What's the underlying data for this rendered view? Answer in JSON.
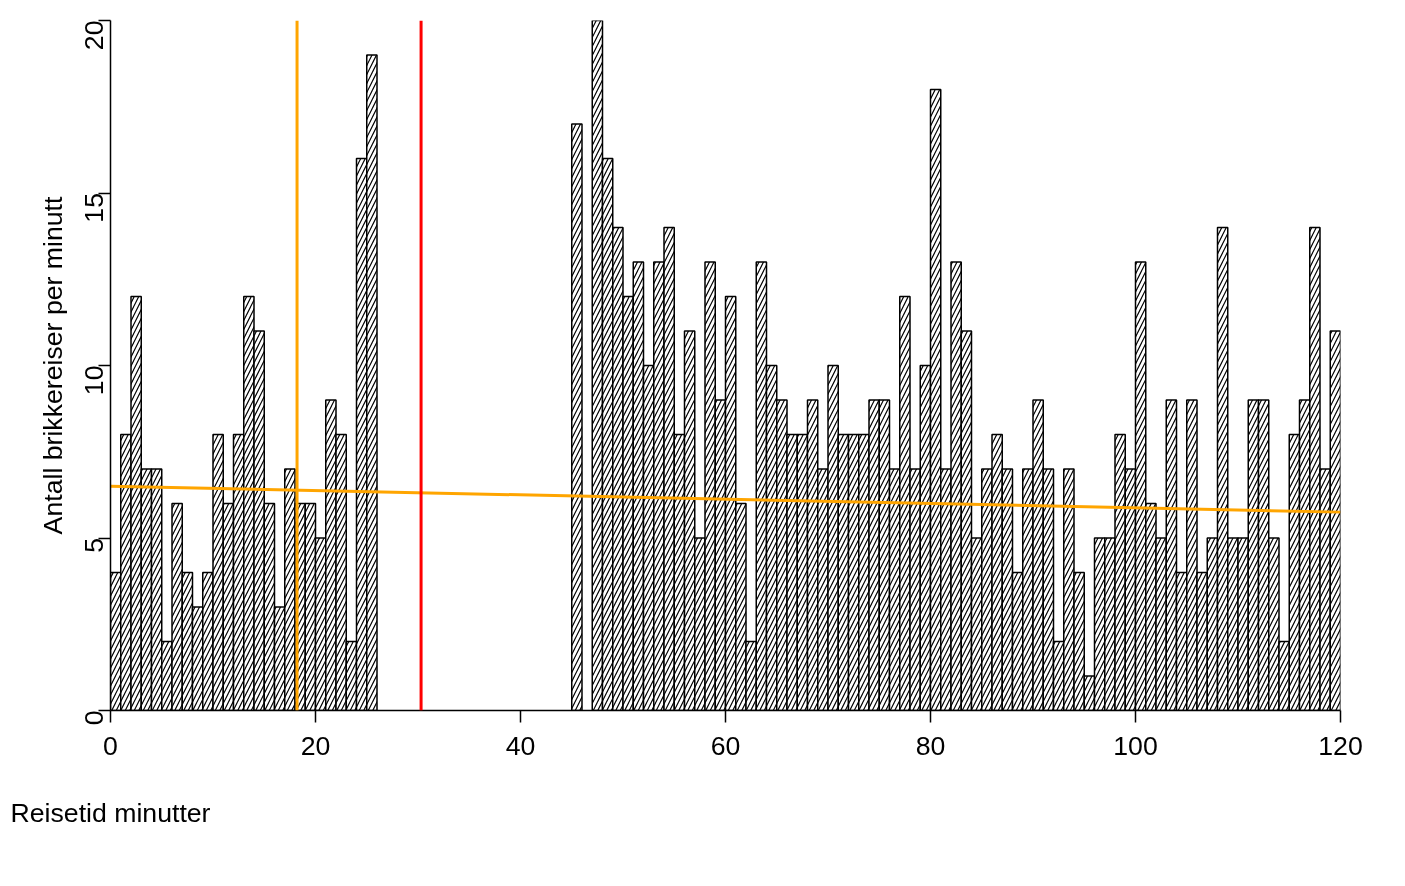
{
  "chart_data": {
    "type": "histogram",
    "xlabel": "Reisetid minutter",
    "ylabel": "Antall brikkereiser per minutt",
    "bins": [
      0,
      1,
      2,
      3,
      4,
      5,
      6,
      7,
      8,
      9,
      10,
      11,
      12,
      13,
      14,
      15,
      16,
      17,
      18,
      19,
      20,
      21,
      22,
      23,
      24,
      25,
      26,
      27,
      28,
      29,
      30,
      31,
      32,
      33,
      34,
      35,
      36,
      37,
      38,
      39,
      40,
      41,
      42,
      43,
      44,
      45,
      46,
      47,
      48,
      49,
      50,
      51,
      52,
      53,
      54,
      55,
      56,
      57,
      58,
      59,
      60,
      61,
      62,
      63,
      64,
      65,
      66,
      67,
      68,
      69,
      70,
      71,
      72,
      73,
      74,
      75,
      76,
      77,
      78,
      79,
      80,
      81,
      82,
      83,
      84,
      85,
      86,
      87,
      88,
      89,
      90,
      91,
      92,
      93,
      94,
      95,
      96,
      97,
      98,
      99,
      100,
      101,
      102,
      103,
      104,
      105,
      106,
      107,
      108,
      109,
      110,
      111,
      112,
      113,
      114,
      115,
      116,
      117,
      118,
      119,
      120
    ],
    "values": [
      4,
      8,
      12,
      7,
      7,
      2,
      6,
      4,
      3,
      4,
      8,
      6,
      8,
      12,
      11,
      6,
      3,
      7,
      6,
      6,
      5,
      9,
      8,
      2,
      16,
      19,
      null,
      null,
      null,
      null,
      null,
      null,
      null,
      null,
      null,
      null,
      null,
      null,
      null,
      null,
      null,
      null,
      null,
      null,
      null,
      17,
      null,
      20,
      16,
      14,
      12,
      13,
      10,
      13,
      14,
      8,
      11,
      5,
      13,
      9,
      12,
      6,
      2,
      13,
      10,
      9,
      8,
      8,
      9,
      7,
      10,
      8,
      8,
      8,
      9,
      9,
      7,
      12,
      7,
      10,
      18,
      7,
      13,
      11,
      5,
      7,
      8,
      7,
      4,
      7,
      9,
      7,
      2,
      7,
      4,
      1,
      5,
      5,
      8,
      7,
      13,
      6,
      5,
      9,
      4,
      9,
      4,
      5,
      14,
      5,
      5,
      9,
      9,
      5,
      2,
      8,
      9,
      14,
      7,
      11
    ],
    "color": "#ffffff",
    "series": [
      {
        "type": "line",
        "color": "#ffa500",
        "x": [
          0,
          120
        ],
        "values": [
          6.5,
          5.75
        ]
      }
    ],
    "ref_lines": [
      {
        "axis": "x",
        "value": 18.2,
        "color": "#ffa500"
      },
      {
        "axis": "x",
        "value": 30.3,
        "color": "#ff0000"
      }
    ],
    "xlim": [
      0,
      120
    ],
    "ylim": [
      0,
      20
    ],
    "xticks": [
      0,
      20,
      40,
      60,
      80,
      100,
      120
    ],
    "yticks": [
      0,
      5,
      10,
      15,
      20
    ],
    "grid": false
  }
}
